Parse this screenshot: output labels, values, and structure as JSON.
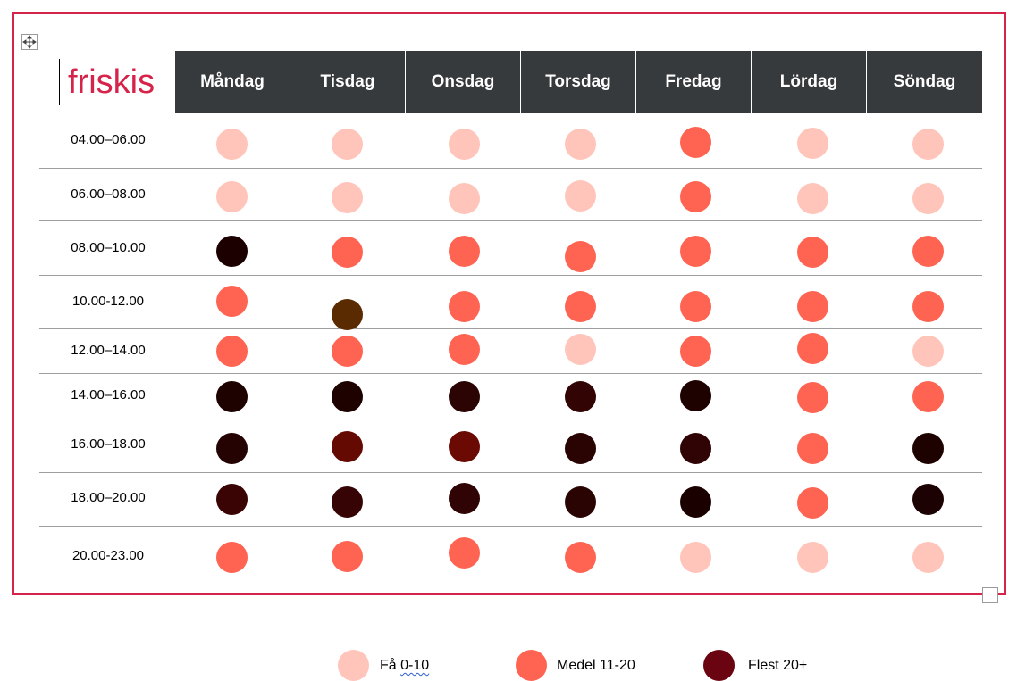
{
  "logo": {
    "text": "friskis",
    "color": "#d6234a"
  },
  "colors": {
    "few": "#ffc4ba",
    "medium": "#ff6452",
    "many": "#6b0411",
    "frame": "#d6234a",
    "header_bg": "#373a3c"
  },
  "days": [
    "Måndag",
    "Tisdag",
    "Onsdag",
    "Torsdag",
    "Fredag",
    "Lördag",
    "Söndag"
  ],
  "rows": [
    {
      "time": "04.00–06.00",
      "cells": [
        "#ffc4ba",
        "#ffc4ba",
        "#ffc4ba",
        "#ffc4ba",
        "#ff6452",
        "#ffc4ba",
        "#ffc4ba"
      ]
    },
    {
      "time": "06.00–08.00",
      "cells": [
        "#ffc4ba",
        "#ffc4ba",
        "#ffc4ba",
        "#ffc4ba",
        "#ff6452",
        "#ffc4ba",
        "#ffc4ba"
      ]
    },
    {
      "time": "08.00–10.00",
      "cells": [
        "#1c0000",
        "#ff6452",
        "#ff6452",
        "#ff6452",
        "#ff6452",
        "#ff6452",
        "#ff6452"
      ]
    },
    {
      "time": "10.00-12.00",
      "cells": [
        "#ff6452",
        "#5a2a00",
        "#ff6452",
        "#ff6452",
        "#ff6452",
        "#ff6452",
        "#ff6452"
      ]
    },
    {
      "time": "12.00–14.00",
      "cells": [
        "#ff6452",
        "#ff6452",
        "#ff6452",
        "#ffc4ba",
        "#ff6452",
        "#ff6452",
        "#ffc4ba"
      ]
    },
    {
      "time": "14.00–16.00",
      "cells": [
        "#1e0200",
        "#1e0200",
        "#2c0404",
        "#320404",
        "#1e0200",
        "#ff6452",
        "#ff6452"
      ]
    },
    {
      "time": "16.00–18.00",
      "cells": [
        "#260303",
        "#650a03",
        "#6b0a03",
        "#2a0303",
        "#300404",
        "#ff6452",
        "#1e0200"
      ]
    },
    {
      "time": "18.00–20.00",
      "cells": [
        "#3a0404",
        "#360404",
        "#300404",
        "#2a0303",
        "#1a0100",
        "#ff6452",
        "#1c0202"
      ]
    },
    {
      "time": "20.00-23.00",
      "cells": [
        "#ff6452",
        "#ff6452",
        "#ff6452",
        "#ff6452",
        "#ffc4ba",
        "#ffc4ba",
        "#ffc4ba"
      ]
    }
  ],
  "legend": [
    {
      "label": "Få 0-10",
      "color": "#ffc4ba"
    },
    {
      "label": "Medel 11-20",
      "color": "#ff6452"
    },
    {
      "label": "Flest 20+",
      "color": "#6b0411"
    }
  ]
}
